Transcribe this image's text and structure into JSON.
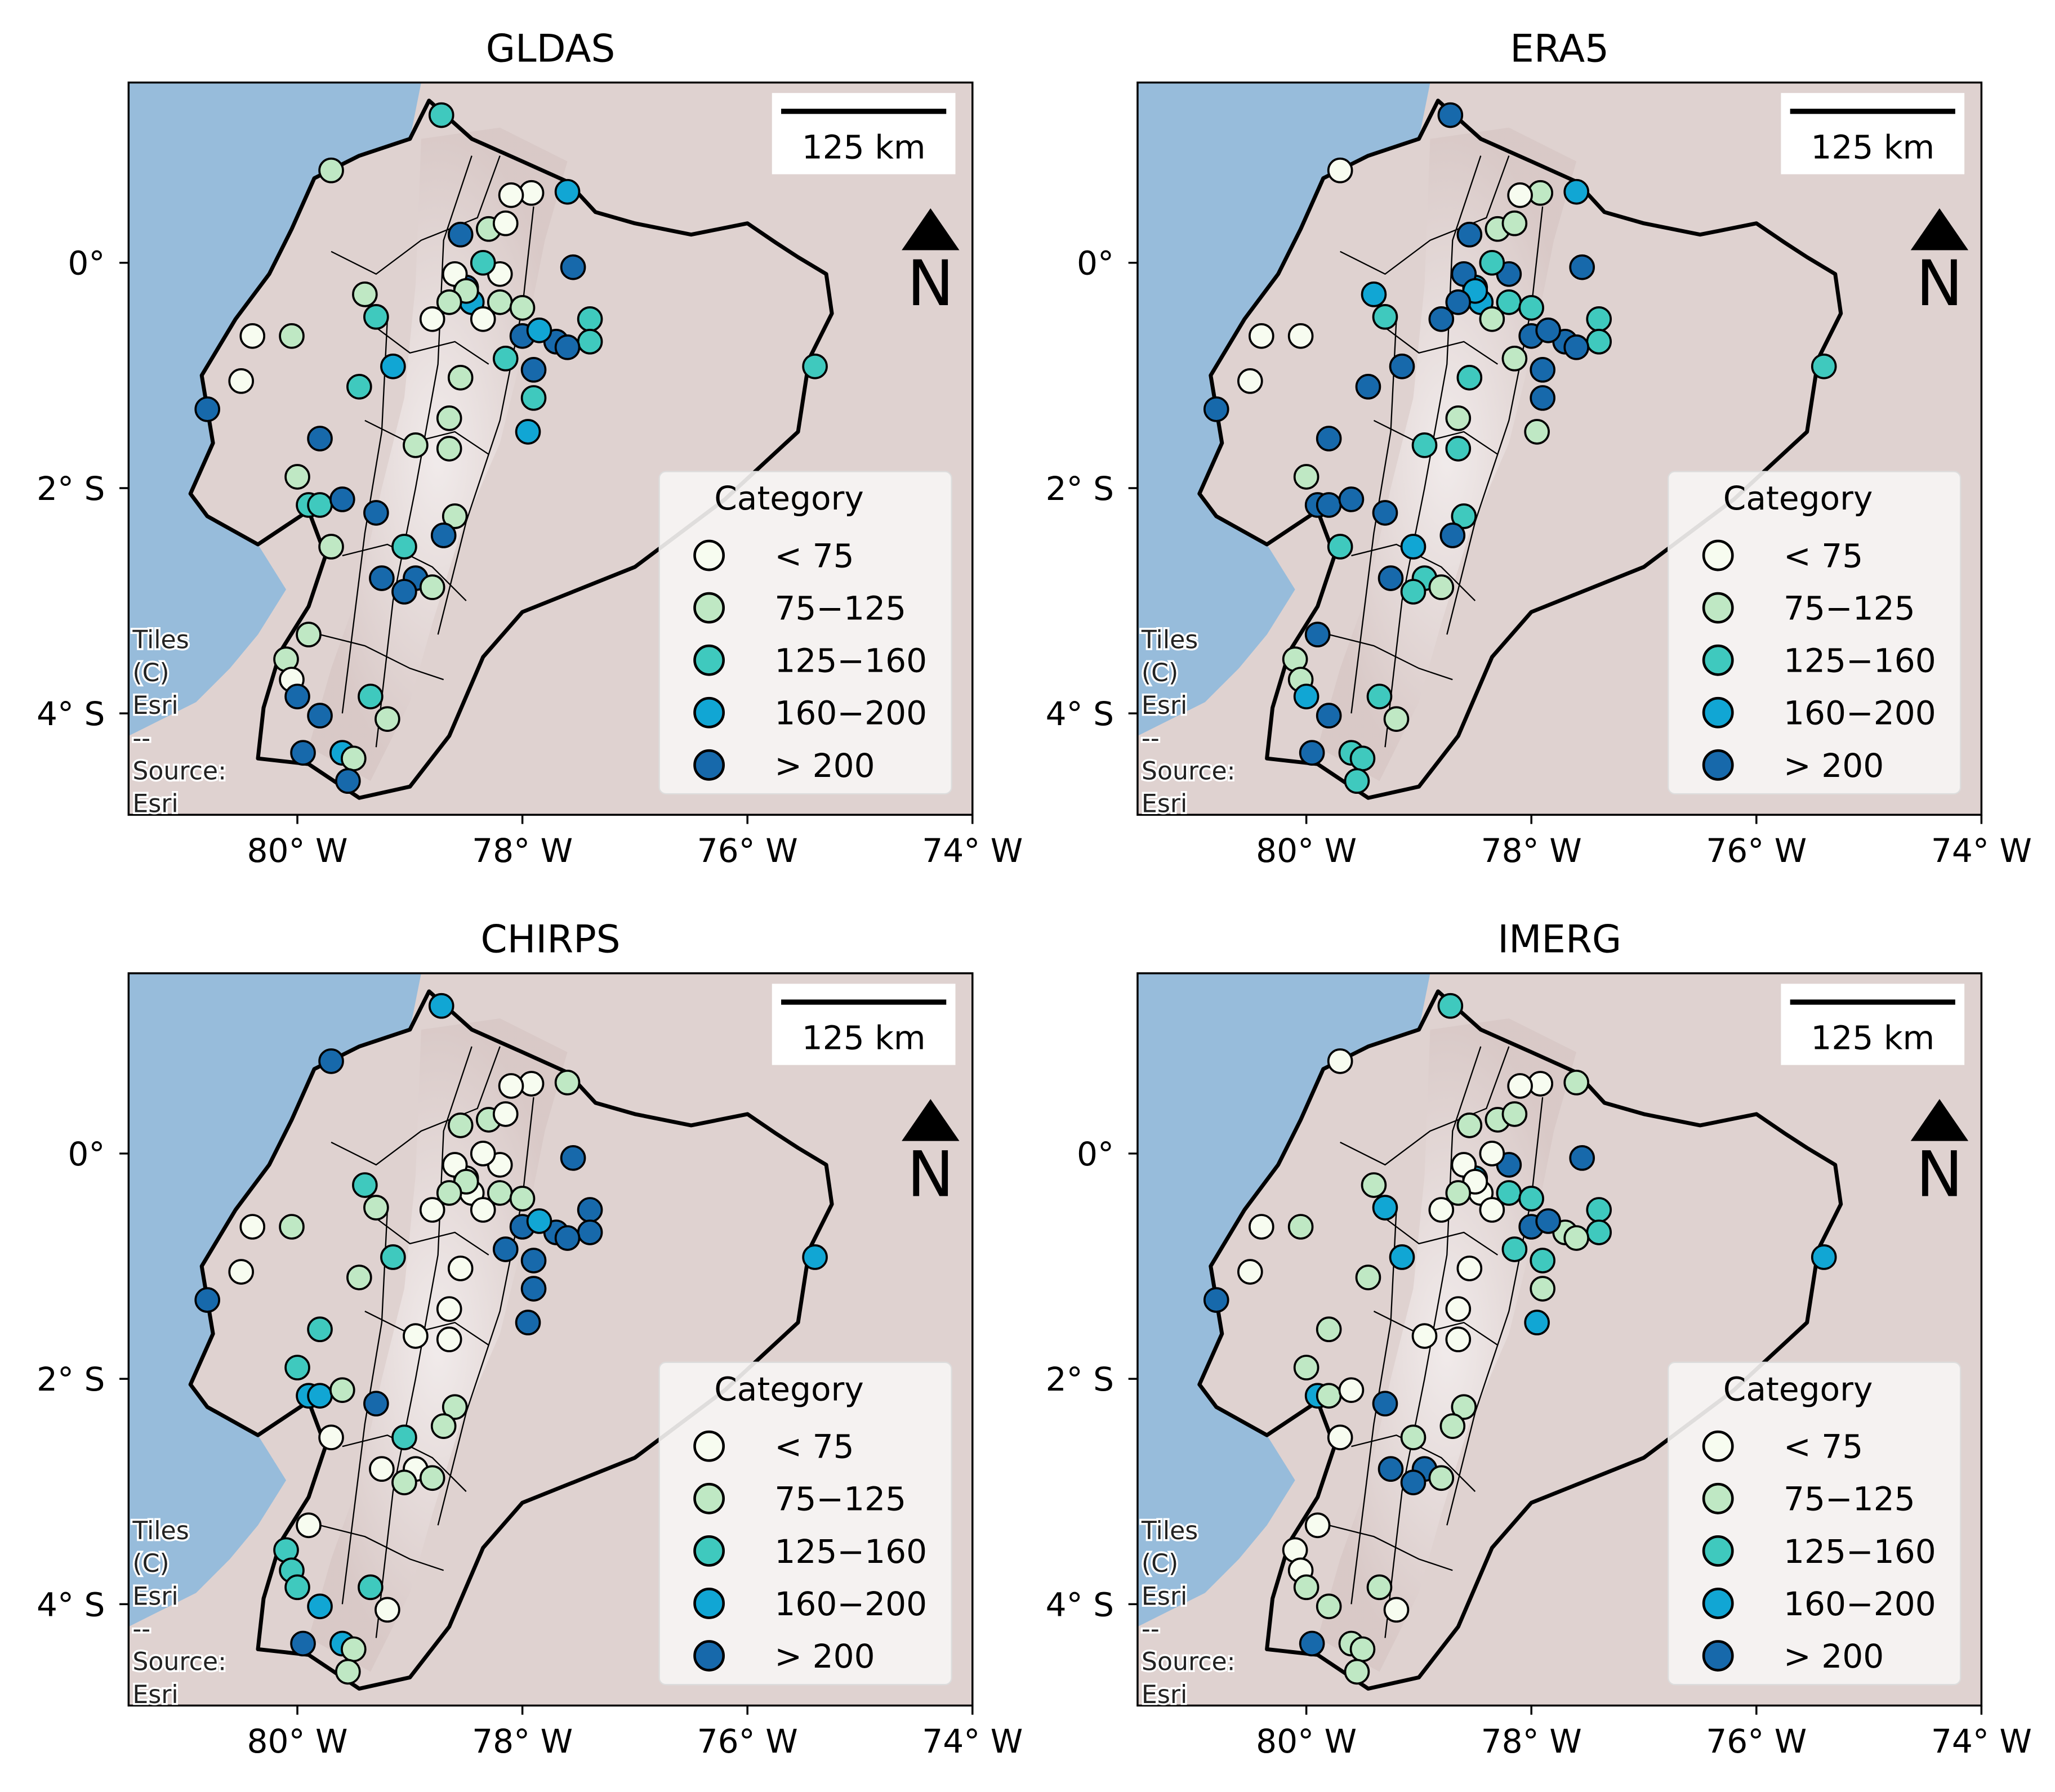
{
  "figure": {
    "x_ticks": [
      {
        "value": -80,
        "label": "80° W"
      },
      {
        "value": -78,
        "label": "78° W"
      },
      {
        "value": -76,
        "label": "76° W"
      },
      {
        "value": -74,
        "label": "74° W"
      }
    ],
    "y_ticks": [
      {
        "value": 0,
        "label": "0°"
      },
      {
        "value": -2,
        "label": "2° S"
      },
      {
        "value": -4,
        "label": "4° S"
      }
    ],
    "lon_range": [
      -81.5,
      -74.0
    ],
    "lat_range": [
      -4.9,
      1.6
    ],
    "scalebar_label": "125 km",
    "north_label": "N",
    "attribution_lines": [
      "Tiles",
      "(C)",
      "Esri",
      "--",
      "Source:",
      "Esri"
    ],
    "legend": {
      "title": "Category",
      "items": [
        {
          "label": "< 75",
          "color": "#f7fcf0"
        },
        {
          "label": "75−125",
          "color": "#bfe8c4"
        },
        {
          "label": "125−160",
          "color": "#3fc9be"
        },
        {
          "label": "160−200",
          "color": "#11a6d4"
        },
        {
          "label": "> 200",
          "color": "#1769ab"
        }
      ]
    },
    "colors": {
      "ocean": "#97bcdb",
      "land_outside": "#dfd2d0",
      "land_ecuador": "#e1d6d4",
      "andes": "#d4c3c0",
      "border": "#000000"
    },
    "stations": [
      [
        -78.72,
        1.31
      ],
      [
        -79.7,
        0.82
      ],
      [
        -77.92,
        0.62
      ],
      [
        -78.1,
        0.6
      ],
      [
        -77.6,
        0.63
      ],
      [
        -77.55,
        -0.04
      ],
      [
        -78.8,
        -0.5
      ],
      [
        -78.5,
        -0.22
      ],
      [
        -78.45,
        -0.35
      ],
      [
        -78.2,
        -0.1
      ],
      [
        -78.3,
        0.3
      ],
      [
        -78.15,
        0.35
      ],
      [
        -78.55,
        0.25
      ],
      [
        -78.35,
        0.0
      ],
      [
        -78.6,
        -0.1
      ],
      [
        -78.35,
        -0.5
      ],
      [
        -78.2,
        -0.35
      ],
      [
        -78.0,
        -0.4
      ],
      [
        -77.4,
        -0.5
      ],
      [
        -77.4,
        -0.7
      ],
      [
        -77.7,
        -0.7
      ],
      [
        -77.6,
        -0.75
      ],
      [
        -78.0,
        -0.65
      ],
      [
        -77.85,
        -0.6
      ],
      [
        -78.15,
        -0.85
      ],
      [
        -77.9,
        -0.95
      ],
      [
        -77.9,
        -1.2
      ],
      [
        -77.95,
        -1.5
      ],
      [
        -78.5,
        -0.25
      ],
      [
        -78.65,
        -0.35
      ],
      [
        -80.4,
        -0.65
      ],
      [
        -80.05,
        -0.65
      ],
      [
        -80.5,
        -1.05
      ],
      [
        -80.8,
        -1.3
      ],
      [
        -79.4,
        -0.28
      ],
      [
        -79.3,
        -0.48
      ],
      [
        -79.15,
        -0.92
      ],
      [
        -79.45,
        -1.1
      ],
      [
        -79.8,
        -1.56
      ],
      [
        -78.55,
        -1.02
      ],
      [
        -78.95,
        -1.62
      ],
      [
        -78.65,
        -1.38
      ],
      [
        -78.65,
        -1.65
      ],
      [
        -80.0,
        -1.9
      ],
      [
        -79.9,
        -2.15
      ],
      [
        -79.8,
        -2.15
      ],
      [
        -79.6,
        -2.1
      ],
      [
        -79.3,
        -2.22
      ],
      [
        -78.6,
        -2.25
      ],
      [
        -78.7,
        -2.42
      ],
      [
        -79.7,
        -2.52
      ],
      [
        -79.05,
        -2.52
      ],
      [
        -79.25,
        -2.8
      ],
      [
        -78.95,
        -2.8
      ],
      [
        -79.05,
        -2.92
      ],
      [
        -78.8,
        -2.88
      ],
      [
        -79.9,
        -3.3
      ],
      [
        -80.1,
        -3.52
      ],
      [
        -80.05,
        -3.7
      ],
      [
        -80.0,
        -3.85
      ],
      [
        -79.35,
        -3.85
      ],
      [
        -79.2,
        -4.05
      ],
      [
        -79.8,
        -4.02
      ],
      [
        -79.95,
        -4.35
      ],
      [
        -79.6,
        -4.35
      ],
      [
        -79.5,
        -4.4
      ],
      [
        -79.55,
        -4.6
      ],
      [
        -75.4,
        -0.92
      ]
    ],
    "panels": [
      {
        "title": "GLDAS",
        "categories": [
          2,
          1,
          0,
          0,
          3,
          4,
          0,
          4,
          3,
          0,
          1,
          0,
          4,
          2,
          0,
          0,
          1,
          1,
          2,
          2,
          4,
          4,
          4,
          3,
          2,
          4,
          2,
          3,
          1,
          1,
          0,
          1,
          0,
          4,
          1,
          2,
          3,
          2,
          4,
          1,
          1,
          1,
          1,
          1,
          2,
          2,
          4,
          4,
          1,
          4,
          1,
          2,
          4,
          4,
          4,
          1,
          1,
          1,
          0,
          4,
          2,
          1,
          4,
          4,
          3,
          1,
          4,
          2
        ]
      },
      {
        "title": "ERA5",
        "categories": [
          4,
          0,
          1,
          0,
          3,
          4,
          4,
          3,
          3,
          4,
          1,
          1,
          4,
          2,
          4,
          1,
          2,
          2,
          2,
          2,
          4,
          4,
          4,
          4,
          1,
          4,
          4,
          1,
          3,
          4,
          0,
          0,
          0,
          4,
          3,
          2,
          4,
          4,
          4,
          2,
          2,
          1,
          2,
          1,
          4,
          4,
          4,
          4,
          2,
          4,
          2,
          3,
          4,
          2,
          2,
          1,
          4,
          1,
          1,
          3,
          2,
          1,
          4,
          4,
          2,
          2,
          2,
          2
        ]
      },
      {
        "title": "CHIRPS",
        "categories": [
          3,
          4,
          0,
          0,
          1,
          4,
          0,
          0,
          0,
          0,
          1,
          0,
          1,
          0,
          0,
          0,
          1,
          1,
          4,
          4,
          4,
          4,
          4,
          3,
          4,
          4,
          4,
          4,
          1,
          1,
          0,
          1,
          0,
          4,
          2,
          1,
          2,
          1,
          2,
          0,
          0,
          0,
          0,
          2,
          3,
          3,
          1,
          4,
          1,
          1,
          0,
          2,
          0,
          0,
          1,
          1,
          0,
          2,
          2,
          2,
          2,
          0,
          3,
          4,
          3,
          1,
          1,
          3
        ]
      },
      {
        "title": "IMERG",
        "categories": [
          2,
          0,
          0,
          0,
          1,
          4,
          0,
          3,
          0,
          4,
          1,
          1,
          1,
          0,
          0,
          0,
          2,
          2,
          2,
          2,
          1,
          1,
          4,
          4,
          2,
          2,
          1,
          3,
          0,
          1,
          0,
          1,
          0,
          4,
          1,
          3,
          3,
          1,
          1,
          0,
          0,
          0,
          0,
          1,
          3,
          1,
          0,
          4,
          1,
          1,
          0,
          1,
          4,
          4,
          4,
          1,
          0,
          0,
          0,
          1,
          1,
          0,
          1,
          4,
          1,
          1,
          1,
          3
        ]
      }
    ]
  }
}
